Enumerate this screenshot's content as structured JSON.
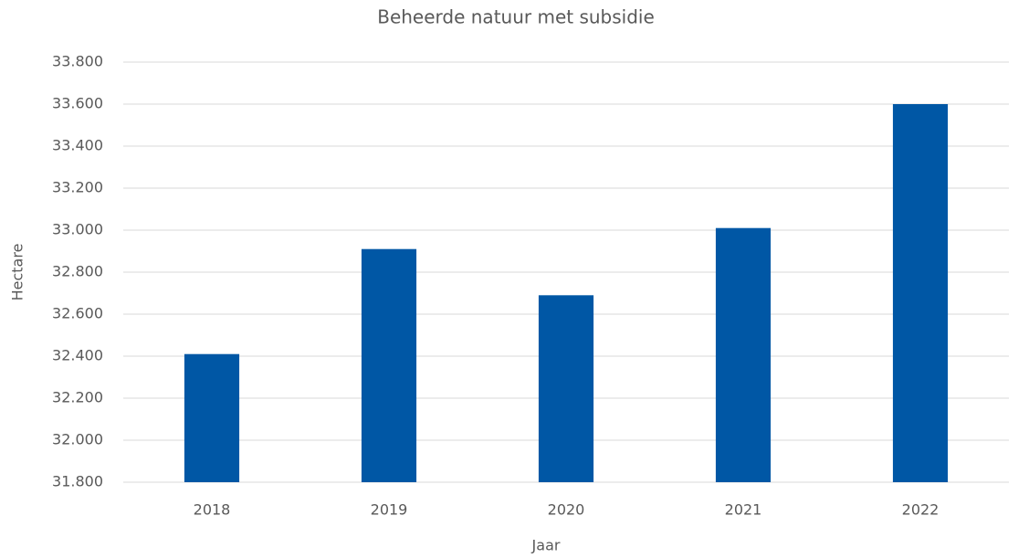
{
  "chart_data": {
    "type": "bar",
    "title": "Beheerde natuur met subsidie",
    "x_label": "Jaar",
    "y_label": "Hectare",
    "categories": [
      "2018",
      "2019",
      "2020",
      "2021",
      "2022"
    ],
    "values": [
      32410,
      32910,
      32690,
      33010,
      33600
    ],
    "color": "#0057a5",
    "ylim": [
      31800,
      33800
    ],
    "yticks": [
      {
        "value": 31800,
        "label": "31.800"
      },
      {
        "value": 32000,
        "label": "32.000"
      },
      {
        "value": 32200,
        "label": "32.200"
      },
      {
        "value": 32400,
        "label": "32.400"
      },
      {
        "value": 32600,
        "label": "32.600"
      },
      {
        "value": 32800,
        "label": "32.800"
      },
      {
        "value": 33000,
        "label": "33.000"
      },
      {
        "value": 33200,
        "label": "33.200"
      },
      {
        "value": 33400,
        "label": "33.400"
      },
      {
        "value": 33600,
        "label": "33.600"
      },
      {
        "value": 33800,
        "label": "33.800"
      }
    ],
    "grid": true
  }
}
